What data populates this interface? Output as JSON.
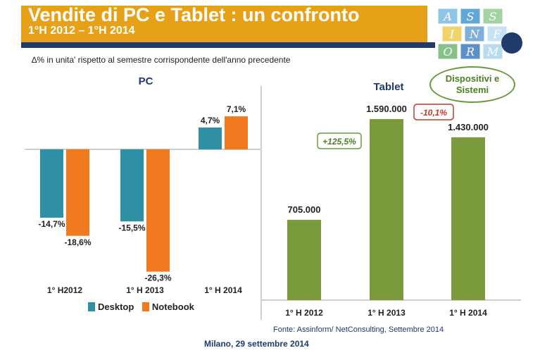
{
  "header": {
    "title": "Vendite di PC e Tablet : un confronto",
    "period": "1°H 2012 – 1°H 2014",
    "subtitle": "∆% in unita' rispetto al semestre corrispondente dell'anno precedente"
  },
  "badge": {
    "label": "Dispositivi e Sistemi"
  },
  "logo": {
    "letters": [
      "A",
      "S",
      "S",
      "I",
      "N",
      "F",
      "O",
      "R",
      "M"
    ]
  },
  "colors": {
    "title_bar": "#e6a118",
    "rule": "#1f3a6b",
    "desktop": "#2f8fa3",
    "notebook": "#f07a1d",
    "tablet": "#7a9a3c"
  },
  "chart_data": [
    {
      "type": "bar",
      "title": "PC",
      "categories": [
        "1° H2012",
        "1° H 2013",
        "1° H 2014"
      ],
      "series": [
        {
          "name": "Desktop",
          "values": [
            -14.7,
            -15.5,
            4.7
          ],
          "labels": [
            "-14,7%",
            "-15,5%",
            "4,7%"
          ]
        },
        {
          "name": "Notebook",
          "values": [
            -18.6,
            -26.3,
            7.1
          ],
          "labels": [
            "-18,6%",
            "-26,3%",
            "7,1%"
          ]
        }
      ],
      "ylim": [
        -30,
        10
      ],
      "grid": false,
      "legend": "bottom"
    },
    {
      "type": "bar",
      "title": "Tablet",
      "categories": [
        "1° H 2012",
        "1° H 2013",
        "1° H 2014"
      ],
      "values": [
        705000,
        1590000,
        1430000
      ],
      "labels": [
        "705.000",
        "1.590.000",
        "1.430.000"
      ],
      "annotations": [
        "+125,5%",
        "-10,1%"
      ],
      "ylim": [
        0,
        1800000
      ],
      "grid": false
    }
  ],
  "footer": {
    "source": "Fonte: Assinform/ NetConsulting, Settembre 2014",
    "place_date": "Milano, 29 settembre 2014"
  }
}
